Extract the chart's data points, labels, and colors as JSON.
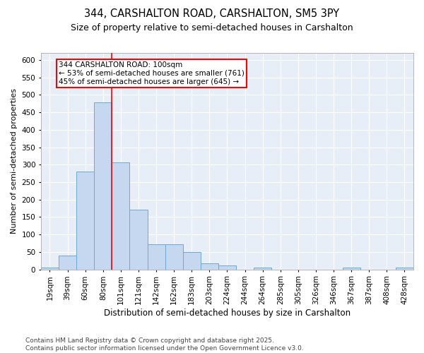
{
  "title1": "344, CARSHALTON ROAD, CARSHALTON, SM5 3PY",
  "title2": "Size of property relative to semi-detached houses in Carshalton",
  "xlabel": "Distribution of semi-detached houses by size in Carshalton",
  "ylabel": "Number of semi-detached properties",
  "categories": [
    "19sqm",
    "39sqm",
    "60sqm",
    "80sqm",
    "101sqm",
    "121sqm",
    "142sqm",
    "162sqm",
    "183sqm",
    "203sqm",
    "224sqm",
    "244sqm",
    "264sqm",
    "285sqm",
    "305sqm",
    "326sqm",
    "346sqm",
    "367sqm",
    "387sqm",
    "408sqm",
    "428sqm"
  ],
  "values": [
    5,
    40,
    280,
    478,
    306,
    172,
    72,
    72,
    50,
    18,
    12,
    0,
    5,
    0,
    0,
    0,
    0,
    5,
    0,
    0,
    5
  ],
  "bar_color": "#c5d8f0",
  "bar_edge_color": "#6aaad4",
  "bg_color": "#e8eef8",
  "grid_color": "#ffffff",
  "vline_color": "red",
  "vline_x": 3.5,
  "annotation_text": "344 CARSHALTON ROAD: 100sqm\n← 53% of semi-detached houses are smaller (761)\n45% of semi-detached houses are larger (645) →",
  "footer": "Contains HM Land Registry data © Crown copyright and database right 2025.\nContains public sector information licensed under the Open Government Licence v3.0.",
  "ylim": [
    0,
    620
  ],
  "yticks": [
    0,
    50,
    100,
    150,
    200,
    250,
    300,
    350,
    400,
    450,
    500,
    550,
    600
  ],
  "title1_fontsize": 10.5,
  "title2_fontsize": 9,
  "xlabel_fontsize": 8.5,
  "ylabel_fontsize": 8,
  "tick_fontsize": 7.5,
  "annot_fontsize": 7.5,
  "footer_fontsize": 6.5
}
